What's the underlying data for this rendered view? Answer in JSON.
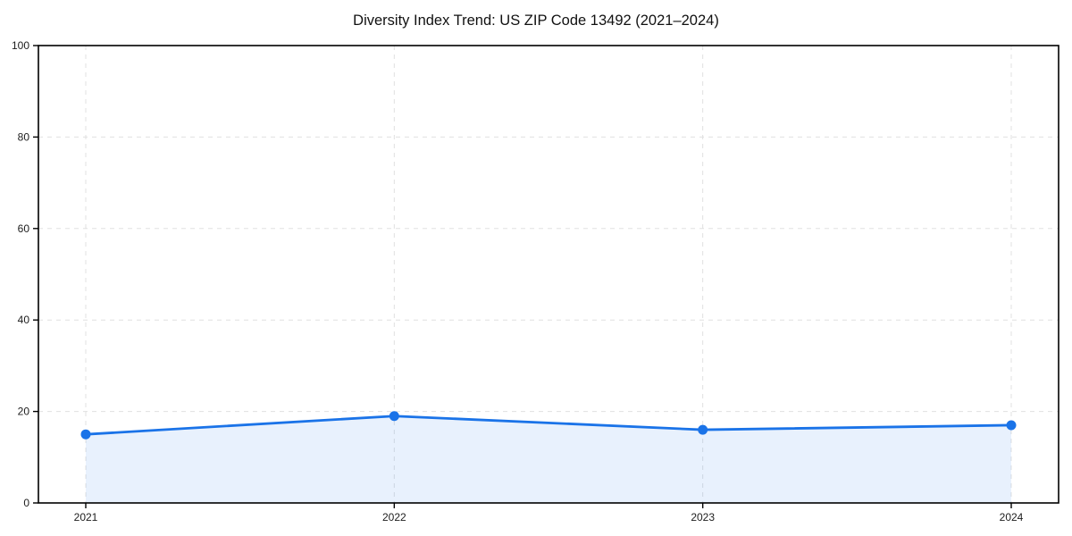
{
  "chart_data": {
    "type": "area",
    "title": "Diversity Index Trend: US ZIP Code 13492 (2021–2024)",
    "categories": [
      "2021",
      "2022",
      "2023",
      "2024"
    ],
    "values": [
      15,
      19,
      16,
      17
    ],
    "xlabel": "",
    "ylabel": "",
    "ylim": [
      0,
      100
    ],
    "yticks": [
      0,
      20,
      40,
      60,
      80,
      100
    ],
    "grid": true,
    "grid_style": "dashed",
    "legend": false,
    "marker": "circle",
    "fill_below": true,
    "line_color": "#1a73e8",
    "fill_color": "rgba(26,115,232,0.10)",
    "grid_color": "#e0e0e0",
    "axis_color": "#000000",
    "text_color": "#1c1c1c"
  }
}
